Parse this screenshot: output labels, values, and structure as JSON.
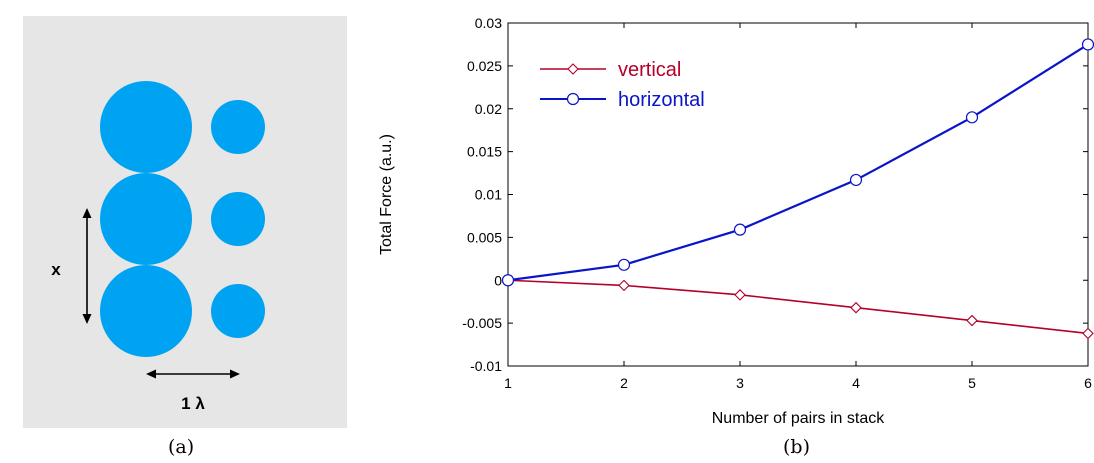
{
  "panel_a": {
    "caption": "(a)",
    "height_label": "x",
    "width_label": "1 λ",
    "background_color": "#e6e6e6",
    "particle_color": "#00a2f2"
  },
  "panel_b": {
    "caption": "(b)"
  },
  "chart_data": {
    "type": "line",
    "title": "",
    "xlabel": "Number of pairs in stack",
    "ylabel": "Total Force (a.u.)",
    "xlim": [
      1,
      6
    ],
    "ylim": [
      -0.01,
      0.03
    ],
    "xticks": [
      "1",
      "2",
      "3",
      "4",
      "5",
      "6"
    ],
    "yticks": [
      "-0.01",
      "-0.005",
      "0",
      "0.005",
      "0.01",
      "0.015",
      "0.02",
      "0.025",
      "0.03"
    ],
    "grid": false,
    "legend_position": "top-left",
    "x": [
      1,
      2,
      3,
      4,
      5,
      6
    ],
    "series": [
      {
        "name": "vertical",
        "marker": "diamond",
        "color": "#b5002a",
        "values": [
          0.0,
          -0.0006,
          -0.0017,
          -0.0032,
          -0.0047,
          -0.0062
        ]
      },
      {
        "name": "horizontal",
        "marker": "circle",
        "color": "#0a14c8",
        "values": [
          0.0,
          0.0018,
          0.0059,
          0.0117,
          0.019,
          0.0275
        ]
      }
    ]
  }
}
